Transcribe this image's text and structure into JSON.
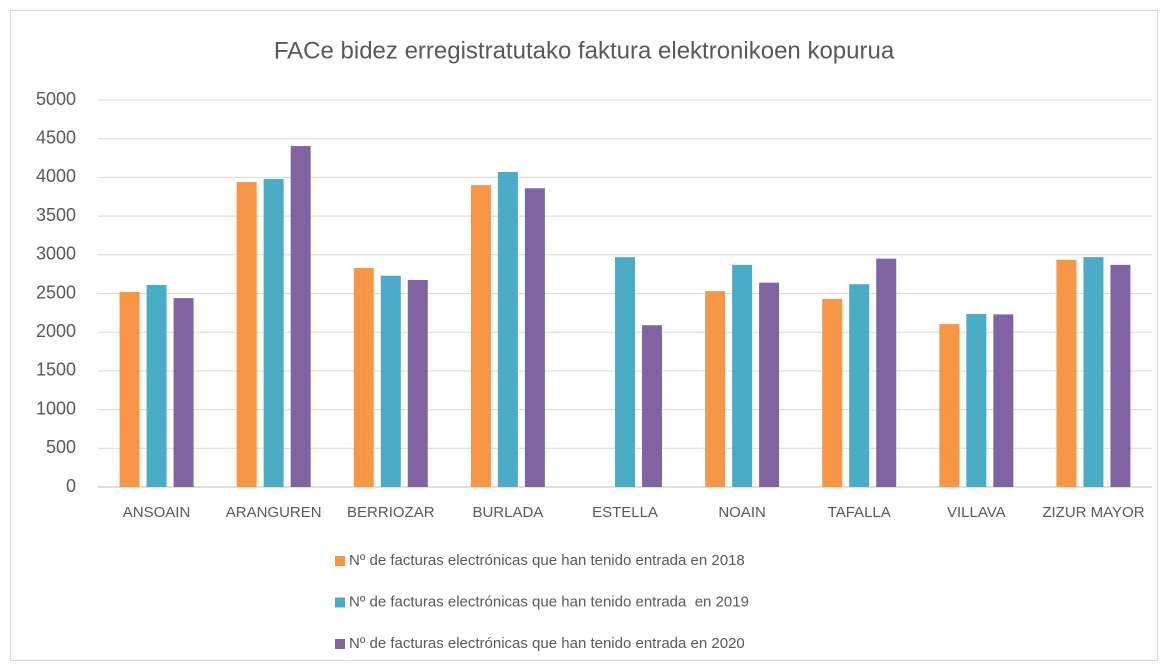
{
  "chart_data": {
    "type": "bar",
    "title": "FACe bidez erregistratutako faktura elektronikoen kopurua",
    "categories": [
      "ANSOAIN",
      "ARANGUREN",
      "BERRIOZAR",
      "BURLADA",
      "ESTELLA",
      "NOAIN",
      "TAFALLA",
      "VILLAVA",
      "ZIZUR MAYOR"
    ],
    "series": [
      {
        "name": "Nº de facturas electrónicas que han tenido entrada en 2018",
        "color": "#f79646",
        "values": [
          2520,
          3940,
          2830,
          3900,
          null,
          2530,
          2430,
          2105,
          2935
        ]
      },
      {
        "name": "Nº de facturas electrónicas que han tenido entrada  en 2019",
        "color": "#4bacc6",
        "values": [
          2610,
          3980,
          2730,
          4070,
          2970,
          2870,
          2620,
          2235,
          2970
        ]
      },
      {
        "name": "Nº de facturas electrónicas que han tenido entrada en 2020",
        "color": "#8064a2",
        "values": [
          2440,
          4405,
          2675,
          3860,
          2090,
          2640,
          2950,
          2230,
          2870
        ]
      }
    ],
    "ylim": [
      0,
      5000
    ],
    "yticks": [
      0,
      500,
      1000,
      1500,
      2000,
      2500,
      3000,
      3500,
      4000,
      4500,
      5000
    ],
    "grid": true,
    "legend": "bottom"
  }
}
